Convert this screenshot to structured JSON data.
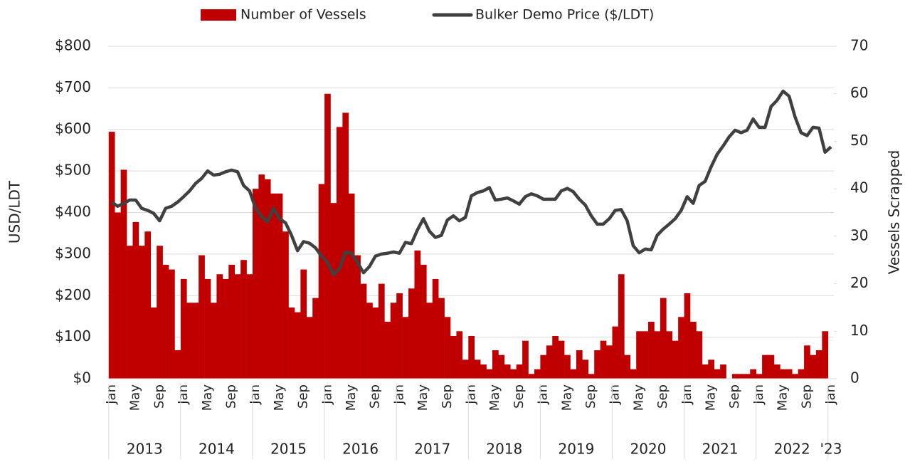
{
  "chart_data": {
    "type": "combo",
    "y_label": "USD/LDT",
    "y2_label": "Vessels Scrapped",
    "categories": [
      "Jan",
      null,
      null,
      null,
      "May",
      null,
      null,
      null,
      "Sep",
      null,
      null,
      null,
      "Jan",
      null,
      null,
      null,
      "May",
      null,
      null,
      null,
      "Sep",
      null,
      null,
      null,
      "Jan",
      null,
      null,
      null,
      "May",
      null,
      null,
      null,
      "Sep",
      null,
      null,
      null,
      "Jan",
      null,
      null,
      null,
      "May",
      null,
      null,
      null,
      "Sep",
      null,
      null,
      null,
      "Jan",
      null,
      null,
      null,
      "May",
      null,
      null,
      null,
      "Sep",
      null,
      null,
      null,
      "Jan",
      null,
      null,
      null,
      "May",
      null,
      null,
      null,
      "Sep",
      null,
      null,
      null,
      "Jan",
      null,
      null,
      null,
      "May",
      null,
      null,
      null,
      "Sep",
      null,
      null,
      null,
      "Jan",
      null,
      null,
      null,
      "May",
      null,
      null,
      null,
      "Sep",
      null,
      null,
      null,
      "Jan",
      null,
      null,
      null,
      "May",
      null,
      null,
      null,
      "Sep",
      null,
      null,
      null,
      "Jan",
      null,
      null,
      null,
      "May",
      null,
      null,
      null,
      "Sep",
      null,
      null,
      null,
      "Jan"
    ],
    "year_labels": [
      "2013",
      "2014",
      "2015",
      "2016",
      "2017",
      "2018",
      "2019",
      "2020",
      "2021",
      "2022",
      "'23"
    ],
    "series": [
      {
        "name": "Number of Vessels",
        "type": "bar",
        "axis": "y2",
        "color": "#c00000",
        "values": [
          52,
          35,
          44,
          28,
          33,
          28,
          31,
          15,
          28,
          24,
          23,
          6,
          21,
          16,
          16,
          26,
          21,
          16,
          22,
          21,
          24,
          22,
          25,
          22,
          40,
          43,
          42,
          39,
          39,
          31,
          15,
          14,
          23,
          13,
          17,
          41,
          60,
          37,
          53,
          56,
          39,
          26,
          20,
          16,
          15,
          20,
          12,
          16,
          18,
          13,
          19,
          27,
          24,
          16,
          21,
          17,
          13,
          9,
          10,
          4,
          9,
          4,
          3,
          2,
          6,
          5,
          3,
          2,
          3,
          8,
          1,
          2,
          5,
          7,
          9,
          8,
          5,
          2,
          6,
          4,
          1,
          6,
          8,
          7,
          11,
          22,
          5,
          2,
          10,
          10,
          12,
          10,
          17,
          10,
          8,
          13,
          18,
          12,
          10,
          3,
          4,
          2,
          3,
          0,
          1,
          1,
          1,
          2,
          1,
          5,
          5,
          3,
          2,
          2,
          1,
          2,
          7,
          5,
          6,
          10,
          null
        ]
      },
      {
        "name": "Bulker Demo Price ($/LDT)",
        "type": "line",
        "color": "#404040",
        "values": [
          425,
          415,
          422,
          430,
          430,
          410,
          405,
          398,
          380,
          410,
          415,
          425,
          438,
          452,
          470,
          482,
          500,
          490,
          492,
          498,
          502,
          498,
          465,
          452,
          410,
          390,
          378,
          410,
          385,
          375,
          345,
          308,
          330,
          326,
          315,
          295,
          280,
          250,
          265,
          305,
          302,
          280,
          255,
          270,
          295,
          300,
          302,
          305,
          302,
          328,
          325,
          358,
          385,
          355,
          340,
          345,
          382,
          392,
          380,
          388,
          440,
          448,
          452,
          460,
          430,
          432,
          435,
          428,
          420,
          438,
          445,
          440,
          432,
          432,
          432,
          452,
          458,
          450,
          432,
          418,
          392,
          372,
          372,
          385,
          405,
          407,
          380,
          320,
          303,
          312,
          310,
          345,
          360,
          372,
          385,
          405,
          438,
          422,
          465,
          475,
          510,
          540,
          560,
          582,
          598,
          592,
          598,
          625,
          605,
          605,
          655,
          670,
          692,
          680,
          630,
          592,
          585,
          605,
          603,
          545,
          558
        ]
      }
    ],
    "ylim": [
      0,
      800
    ],
    "yticks": [
      {
        "value": 0,
        "label": "$0"
      },
      {
        "value": 100,
        "label": "$100"
      },
      {
        "value": 200,
        "label": "$200"
      },
      {
        "value": 300,
        "label": "$300"
      },
      {
        "value": 400,
        "label": "$400"
      },
      {
        "value": 500,
        "label": "$500"
      },
      {
        "value": 600,
        "label": "$600"
      },
      {
        "value": 700,
        "label": "$700"
      },
      {
        "value": 800,
        "label": "$800"
      }
    ],
    "y2lim": [
      0,
      70
    ],
    "y2ticks": [
      0,
      10,
      20,
      30,
      40,
      50,
      60,
      70
    ],
    "grid": true,
    "legend": "top"
  }
}
